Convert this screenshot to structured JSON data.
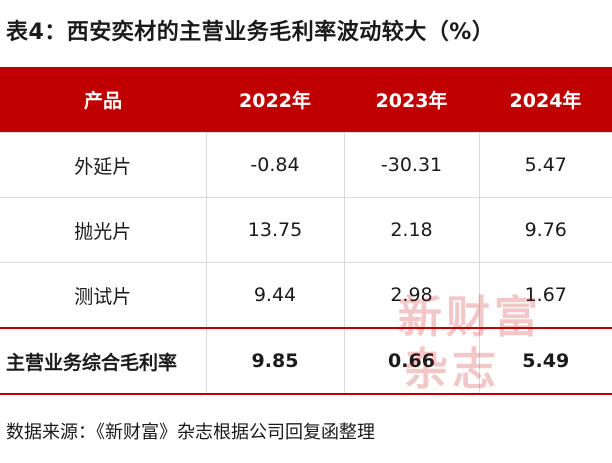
{
  "title": "表4：西安奕材的主营业务毛利率波动较大（%）",
  "table": {
    "headers": [
      "产品",
      "2022年",
      "2023年",
      "2024年"
    ],
    "rows": [
      [
        "外延片",
        "-0.84",
        "-30.31",
        "5.47"
      ],
      [
        "抛光片",
        "13.75",
        "2.18",
        "9.76"
      ],
      [
        "测试片",
        "9.44",
        "2.98",
        "1.67"
      ]
    ],
    "total": [
      "主营业务综合毛利率",
      "9.85",
      "0.66",
      "5.49"
    ]
  },
  "watermark": {
    "line1": "新财富",
    "line2": "杂志"
  },
  "source": "数据来源：《新财富》杂志根据公司回复函整理",
  "colors": {
    "header_bg": "#c00000",
    "header_text": "#ffffff",
    "grid": "#d9d9d9"
  }
}
